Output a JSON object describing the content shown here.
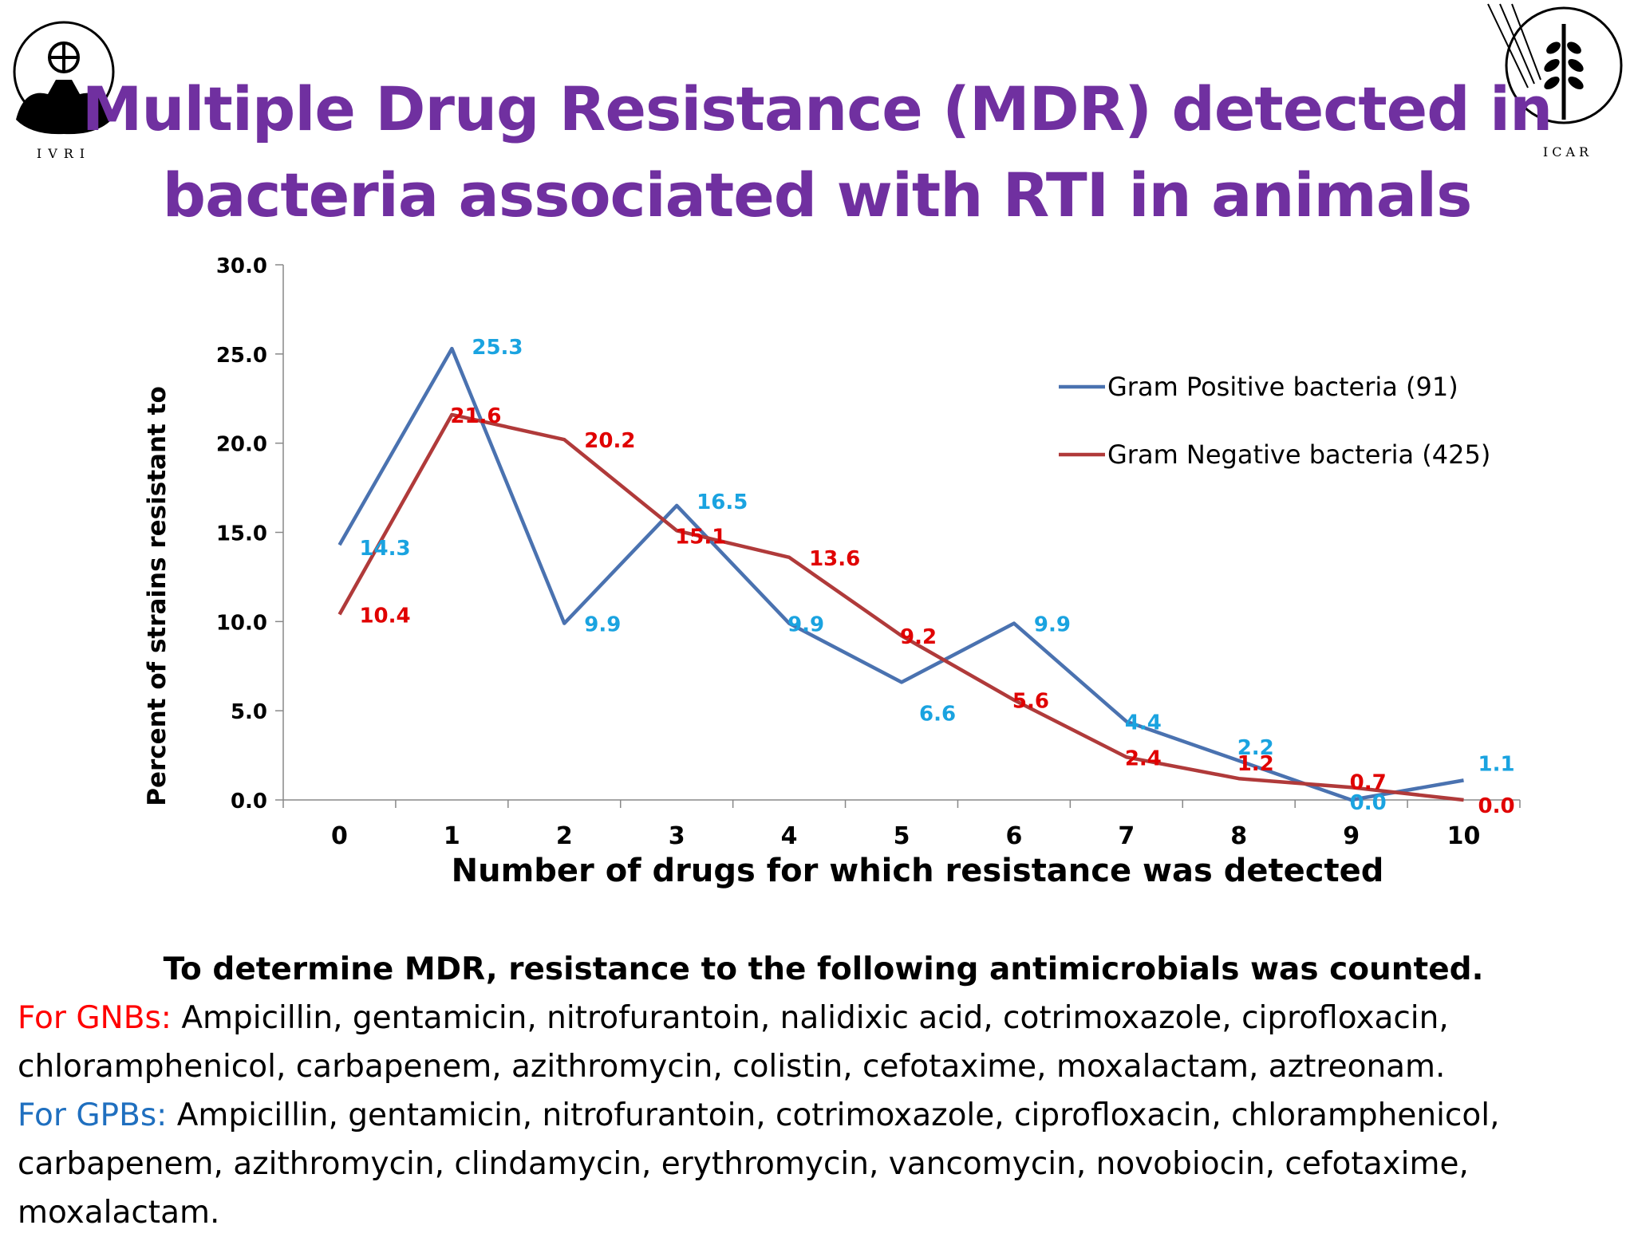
{
  "slide": {
    "title_line1": "Multiple Drug Resistance (MDR) detected in",
    "title_line2": "bacteria associated with RTI in animals",
    "logo_left_text": "IVRI",
    "logo_right_text": "ICAR"
  },
  "chart_data": {
    "type": "line",
    "x": [
      0,
      1,
      2,
      3,
      4,
      5,
      6,
      7,
      8,
      9,
      10
    ],
    "categories": [
      "0",
      "1",
      "2",
      "3",
      "4",
      "5",
      "6",
      "7",
      "8",
      "9",
      "10"
    ],
    "xlabel": "Number of drugs for which resistance was detected",
    "ylabel": "Percent of strains resistant to",
    "ylim": [
      0,
      30
    ],
    "yticks": [
      "0.0",
      "5.0",
      "10.0",
      "15.0",
      "20.0",
      "25.0",
      "30.0"
    ],
    "grid": false,
    "legend_position": "top-right",
    "series": [
      {
        "name": "Gram Positive bacteria (91)",
        "color": "#4a72b0",
        "label_color": "#1aa3e0",
        "values": [
          14.3,
          25.3,
          9.9,
          16.5,
          9.9,
          6.6,
          9.9,
          4.4,
          2.2,
          0.0,
          1.1
        ],
        "data_labels": [
          "14.3",
          "25.3",
          "9.9",
          "16.5",
          "9.9",
          "6.6",
          "9.9",
          "4.4",
          "2.2",
          "0.0",
          "1.1"
        ]
      },
      {
        "name": "Gram Negative bacteria (425)",
        "color": "#b03a3a",
        "label_color": "#e00000",
        "values": [
          10.4,
          21.6,
          20.2,
          15.1,
          13.6,
          9.2,
          5.6,
          2.4,
          1.2,
          0.7,
          0.0
        ],
        "data_labels": [
          "10.4",
          "21.6",
          "20.2",
          "15.1",
          "13.6",
          "9.2",
          "5.6",
          "2.4",
          "1.2",
          "0.7",
          "0.0"
        ]
      }
    ]
  },
  "note": {
    "heading": "To determine MDR, resistance  to the following antimicrobials was counted.",
    "gnb_label": "For GNBs:",
    "gnb_text": " Ampicillin, gentamicin,  nitrofurantoin, nalidixic acid, cotrimoxazole, ciprofloxacin, chloramphenicol, carbapenem, azithromycin, colistin, cefotaxime, moxalactam, aztreonam.",
    "gpb_label": "For GPBs:",
    "gpb_text": " Ampicillin, gentamicin,  nitrofurantoin, cotrimoxazole, ciprofloxacin, chloramphenicol, carbapenem, azithromycin, clindamycin, erythromycin, vancomycin, novobiocin, cefotaxime, moxalactam."
  }
}
